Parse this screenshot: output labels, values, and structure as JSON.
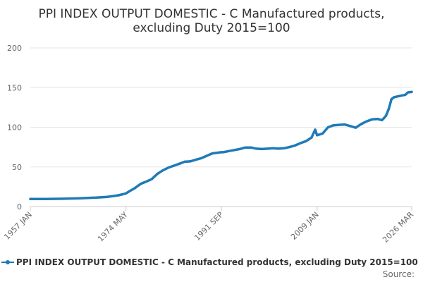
{
  "chart_data": {
    "type": "line",
    "title_lines": [
      "PPI INDEX OUTPUT DOMESTIC - C Manufactured products,",
      "excluding Duty 2015=100"
    ],
    "xlabel": "",
    "ylabel": "",
    "y_ticks": [
      0,
      50,
      100,
      150,
      200
    ],
    "ylim": [
      0,
      200
    ],
    "x_ticks": [
      "1957 JAN",
      "1974 MAY",
      "1991 SEP",
      "2009 JAN",
      "2026 MAR"
    ],
    "x_range": [
      "1957 JAN",
      "2026 MAR"
    ],
    "grid": "horizontal",
    "legend_position": "bottom",
    "colors": {
      "series": "#1f7ab7",
      "grid": "#e6e6e6",
      "axis": "#cccccc"
    },
    "series": [
      {
        "name": "PPI INDEX OUTPUT DOMESTIC - C Manufactured products, excluding Duty 2015=100",
        "points": [
          [
            "1957 JAN",
            9.5
          ],
          [
            "1960 JAN",
            9.6
          ],
          [
            "1963 JAN",
            9.9
          ],
          [
            "1966 JAN",
            10.5
          ],
          [
            "1969 JAN",
            11.3
          ],
          [
            "1971 JAN",
            12.3
          ],
          [
            "1972 JAN",
            13.2
          ],
          [
            "1973 JAN",
            14.2
          ],
          [
            "1974 MAY",
            16.5
          ],
          [
            "1975 JAN",
            19.5
          ],
          [
            "1976 JAN",
            23.5
          ],
          [
            "1977 JAN",
            28.5
          ],
          [
            "1978 JAN",
            31.5
          ],
          [
            "1979 JAN",
            34.5
          ],
          [
            "1980 JAN",
            41.0
          ],
          [
            "1981 JAN",
            45.5
          ],
          [
            "1982 JAN",
            49.0
          ],
          [
            "1983 JAN",
            51.5
          ],
          [
            "1984 JAN",
            54.0
          ],
          [
            "1985 JAN",
            56.5
          ],
          [
            "1986 JAN",
            57.0
          ],
          [
            "1987 JAN",
            59.0
          ],
          [
            "1988 JAN",
            61.0
          ],
          [
            "1989 JAN",
            64.0
          ],
          [
            "1990 JAN",
            67.0
          ],
          [
            "1991 SEP",
            68.5
          ],
          [
            "1992 JAN",
            68.5
          ],
          [
            "1993 JAN",
            70.0
          ],
          [
            "1995 JAN",
            72.5
          ],
          [
            "1996 JAN",
            74.5
          ],
          [
            "1997 JAN",
            74.5
          ],
          [
            "1998 JAN",
            73.0
          ],
          [
            "1999 JAN",
            72.5
          ],
          [
            "2000 JAN",
            73.0
          ],
          [
            "2001 JAN",
            73.5
          ],
          [
            "2002 JAN",
            73.0
          ],
          [
            "2003 JAN",
            73.5
          ],
          [
            "2004 JAN",
            75.0
          ],
          [
            "2005 JAN",
            77.0
          ],
          [
            "2006 JAN",
            80.0
          ],
          [
            "2007 JAN",
            82.5
          ],
          [
            "2008 JAN",
            87.0
          ],
          [
            "2008 SEP",
            97.0
          ],
          [
            "2009 JAN",
            90.0
          ],
          [
            "2010 JAN",
            92.0
          ],
          [
            "2011 JAN",
            100.0
          ],
          [
            "2012 JAN",
            102.5
          ],
          [
            "2013 JAN",
            103.0
          ],
          [
            "2014 JAN",
            103.5
          ],
          [
            "2015 JAN",
            101.5
          ],
          [
            "2016 JAN",
            99.5
          ],
          [
            "2017 JAN",
            104.0
          ],
          [
            "2018 JAN",
            107.5
          ],
          [
            "2019 JAN",
            110.0
          ],
          [
            "2020 JAN",
            110.5
          ],
          [
            "2020 OCT",
            109.0
          ],
          [
            "2021 JAN",
            110.5
          ],
          [
            "2021 JUL",
            114.5
          ],
          [
            "2022 JAN",
            123.0
          ],
          [
            "2022 JUL",
            135.5
          ],
          [
            "2023 JAN",
            138.0
          ],
          [
            "2024 JAN",
            139.5
          ],
          [
            "2025 JAN",
            141.0
          ],
          [
            "2025 JUL",
            144.0
          ],
          [
            "2026 MAR",
            144.5
          ]
        ]
      }
    ]
  },
  "source_label": "Source:"
}
